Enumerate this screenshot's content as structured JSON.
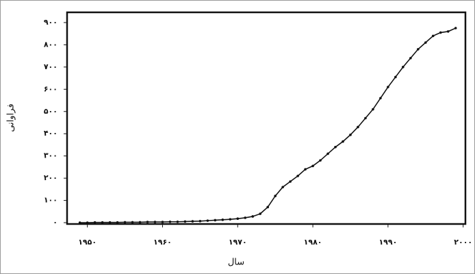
{
  "chart_data": {
    "type": "line",
    "x_label": "سال",
    "y_label": "فراوانی",
    "x": [
      1949,
      1950,
      1951,
      1952,
      1953,
      1954,
      1955,
      1956,
      1957,
      1958,
      1959,
      1960,
      1961,
      1962,
      1963,
      1964,
      1965,
      1966,
      1967,
      1968,
      1969,
      1970,
      1971,
      1972,
      1973,
      1974,
      1975,
      1976,
      1977,
      1978,
      1979,
      1980,
      1981,
      1982,
      1983,
      1984,
      1985,
      1986,
      1987,
      1988,
      1989,
      1990,
      1991,
      1992,
      1993,
      1994,
      1995,
      1996,
      1997,
      1998,
      1999
    ],
    "series": [
      {
        "color": "#111111",
        "values": [
          0,
          0,
          1,
          1,
          1,
          1,
          2,
          2,
          2,
          3,
          3,
          3,
          4,
          4,
          5,
          6,
          7,
          9,
          11,
          13,
          15,
          18,
          22,
          28,
          40,
          70,
          120,
          160,
          185,
          210,
          240,
          255,
          280,
          310,
          340,
          365,
          395,
          430,
          470,
          510,
          560,
          610,
          655,
          700,
          740,
          780,
          810,
          840,
          855,
          860,
          875
        ]
      }
    ],
    "xlim": [
      1947.3,
      2000.3
    ],
    "ylim": [
      -6,
      946
    ],
    "xticks": [
      {
        "value": 1950,
        "label": "۱۹۵۰"
      },
      {
        "value": 1960,
        "label": "۱۹۶۰"
      },
      {
        "value": 1970,
        "label": "۱۹۷۰"
      },
      {
        "value": 1980,
        "label": "۱۹۸۰"
      },
      {
        "value": 1990,
        "label": "۱۹۹۰"
      },
      {
        "value": 2000,
        "label": "۲۰۰۰"
      }
    ],
    "yticks": [
      {
        "value": 0,
        "label": "۰"
      },
      {
        "value": 100,
        "label": "۱۰۰"
      },
      {
        "value": 200,
        "label": "۲۰۰"
      },
      {
        "value": 300,
        "label": "۳۰۰"
      },
      {
        "value": 400,
        "label": "۴۰۰"
      },
      {
        "value": 500,
        "label": "۵۰۰"
      },
      {
        "value": 600,
        "label": "۶۰۰"
      },
      {
        "value": 700,
        "label": "۷۰۰"
      },
      {
        "value": 800,
        "label": "۸۰۰"
      },
      {
        "value": 900,
        "label": "۹۰۰"
      }
    ]
  }
}
